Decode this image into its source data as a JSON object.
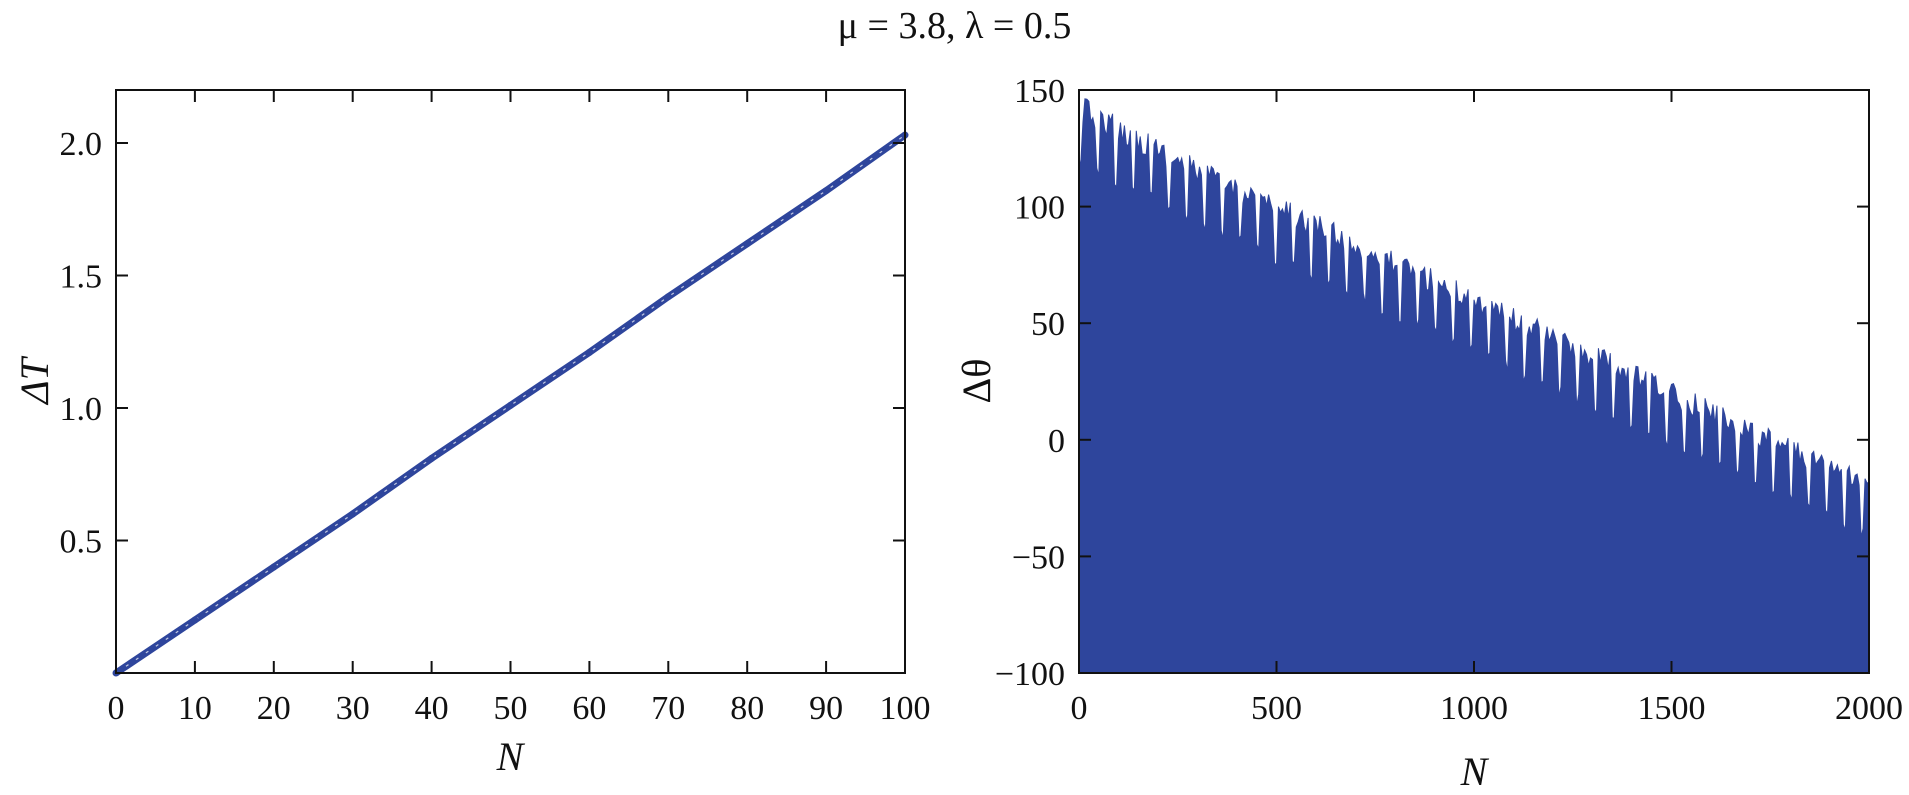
{
  "figure_title": "μ = 3.8, λ = 0.5",
  "colors": {
    "series": "#2e459c",
    "axis": "#111111"
  },
  "chart_data": [
    {
      "type": "line",
      "title": "",
      "xlabel": "N",
      "ylabel": "ΔT",
      "xlim": [
        0,
        100
      ],
      "ylim": [
        0,
        2.2
      ],
      "x_ticks": [
        0,
        10,
        20,
        30,
        40,
        50,
        60,
        70,
        80,
        90,
        100
      ],
      "x_tick_labels": [
        "0",
        "10",
        "20",
        "30",
        "40",
        "50",
        "60",
        "70",
        "80",
        "90",
        "100"
      ],
      "y_ticks": [
        0.5,
        1.0,
        1.5,
        2.0
      ],
      "y_tick_labels": [
        "0.5",
        "1.0",
        "1.5",
        "2.0"
      ],
      "grid": false,
      "series": [
        {
          "x": [
            0,
            10,
            20,
            30,
            40,
            50,
            60,
            70,
            80,
            90,
            100
          ],
          "values": [
            0.0,
            0.2,
            0.4,
            0.6,
            0.81,
            1.01,
            1.21,
            1.42,
            1.62,
            1.82,
            2.03
          ]
        }
      ]
    },
    {
      "type": "area",
      "title": "",
      "xlabel": "N",
      "ylabel": "Δθ",
      "xlim": [
        0,
        2000
      ],
      "ylim": [
        -100,
        150
      ],
      "baseline": -100,
      "x_ticks": [
        0,
        500,
        1000,
        1500,
        2000
      ],
      "x_tick_labels": [
        "0",
        "500",
        "1000",
        "1500",
        "2000"
      ],
      "y_ticks": [
        -100,
        -50,
        0,
        50,
        100,
        150
      ],
      "y_tick_labels": [
        "−100",
        "−50",
        "0",
        "50",
        "100",
        "150"
      ],
      "grid": false,
      "series": [
        {
          "x": [
            0,
            250,
            500,
            750,
            1000,
            1250,
            1500,
            1750,
            2000
          ],
          "values": [
            130,
            110,
            90,
            70,
            50,
            30,
            10,
            -10,
            -30
          ],
          "upper_envelope": [
            148,
            125,
            105,
            85,
            65,
            45,
            25,
            5,
            -15
          ],
          "lower_envelope": [
            115,
            95,
            75,
            55,
            35,
            15,
            -5,
            -25,
            -45
          ]
        }
      ]
    }
  ]
}
